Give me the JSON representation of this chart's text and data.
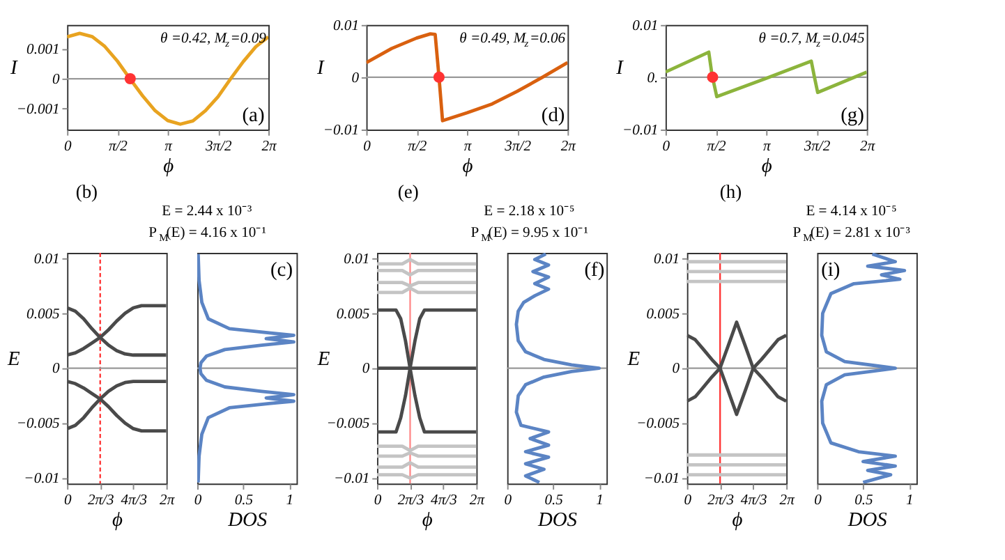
{
  "chart_data": [
    {
      "type": "line",
      "xlabel": "ϕ",
      "ylabel": "I",
      "xlim": [
        0,
        6.2832
      ],
      "ylim": [
        -0.0017,
        0.0018
      ],
      "xticks": [
        0,
        {
          "value": 1.5708,
          "label": "π/2"
        },
        {
          "value": 3.1416,
          "label": "π"
        },
        {
          "value": 4.7124,
          "label": "3π/2"
        },
        {
          "value": 6.2832,
          "label": "2π"
        }
      ],
      "yticks": [
        0.001,
        0,
        {
          "value": -0.001,
          "label": "−0.001"
        }
      ],
      "x": [
        0,
        0.3927,
        0.7854,
        1.1781,
        1.5708,
        1.9635,
        2.3562,
        2.7489,
        3.1416,
        3.5343,
        3.927,
        4.3197,
        4.7124,
        5.1051,
        5.4978,
        5.8905,
        6.2832
      ],
      "series": [
        {
          "color": "#e8a320",
          "values": [
            0.0014,
            0.00152,
            0.00141,
            0.00108,
            0.00059,
            0,
            -0.00057,
            -0.00107,
            -0.0014,
            -0.00152,
            -0.00141,
            -0.00107,
            -0.0006,
            0,
            0.00057,
            0.00107,
            0.0014
          ]
        },
        {
          "type": "scatter",
          "color": "#ff3333",
          "x": [
            1.97
          ],
          "values": [
            0
          ]
        }
      ],
      "ref_lines": [
        {
          "axis": "y",
          "value": 0,
          "color": "#999999"
        }
      ],
      "annotations": [
        "θ =0.42, M$_{z}$=0.09",
        "(a)"
      ]
    },
    {
      "type": "line",
      "xlabel": "ϕ",
      "ylabel": "I",
      "xlim": [
        0,
        6.2832
      ],
      "ylim": [
        -0.01,
        0.01
      ],
      "xticks": [
        0,
        {
          "value": 1.5708,
          "label": "π/2"
        },
        {
          "value": 3.1416,
          "label": "π"
        },
        {
          "value": 4.7124,
          "label": "3π/2"
        },
        {
          "value": 6.2832,
          "label": "2π"
        }
      ],
      "yticks": [
        0.01,
        0,
        {
          "value": -0.01,
          "label": "−0.01"
        }
      ],
      "x": [
        0,
        0.79,
        1.57,
        2.0,
        2.15,
        2.27,
        2.38,
        3.14,
        3.93,
        4.71,
        5.5,
        6.2832
      ],
      "series": [
        {
          "color": "#d9600f",
          "values": [
            0.0028,
            0.0055,
            0.0075,
            0.0083,
            0.0082,
            0,
            -0.0083,
            -0.0068,
            -0.0051,
            -0.0027,
            0,
            0.0028
          ]
        },
        {
          "type": "scatter",
          "color": "#ff3333",
          "x": [
            2.27
          ],
          "values": [
            0
          ]
        }
      ],
      "ref_lines": [
        {
          "axis": "y",
          "value": 0,
          "color": "#999999"
        }
      ],
      "annotations": [
        "θ =0.49, M$_{z}$=0.06",
        "(d)"
      ]
    },
    {
      "type": "line",
      "xlabel": "ϕ",
      "ylabel": "I",
      "xlim": [
        0,
        6.2832
      ],
      "ylim": [
        -0.01,
        0.01
      ],
      "xticks": [
        0,
        {
          "value": 1.5708,
          "label": "π/2"
        },
        {
          "value": 3.1416,
          "label": "π"
        },
        {
          "value": 4.7124,
          "label": "3π/2"
        },
        {
          "value": 6.2832,
          "label": "2π"
        }
      ],
      "yticks": [
        0.01,
        {
          "value": 0,
          "label": "0."
        },
        {
          "value": -0.01,
          "label": "−0.01"
        }
      ],
      "x": [
        0,
        1.35,
        1.45,
        1.6,
        3.14,
        4.55,
        4.65,
        4.75,
        6.2832
      ],
      "series": [
        {
          "color": "#8cb43c",
          "values": [
            0.001,
            0.0048,
            0.0005,
            -0.0037,
            -0.0002,
            0.0031,
            0,
            -0.0029,
            0.001
          ]
        },
        {
          "type": "scatter",
          "color": "#ff3333",
          "x": [
            1.47
          ],
          "values": [
            0
          ]
        }
      ],
      "ref_lines": [
        {
          "axis": "y",
          "value": 0,
          "color": "#999999"
        }
      ],
      "annotations": [
        "θ =0.7, M$_{z}$=0.045",
        "(g)"
      ]
    },
    {
      "type": "other",
      "annotations": [
        "(b)",
        "E = 2.44 x 10⁻³",
        "P$_{M}$(E) = 4.16 x 10⁻¹"
      ]
    },
    {
      "type": "other",
      "annotations": [
        "(e)",
        "E = 2.18 x 10⁻⁵",
        "P$_{M}$(E) = 9.95 x 10⁻¹"
      ]
    },
    {
      "type": "other",
      "annotations": [
        "(h)",
        "E = 4.14 x 10⁻⁵",
        "P$_{M}$(E) = 2.81 x 10⁻³"
      ]
    },
    {
      "type": "line",
      "xlabel": "ϕ",
      "ylabel": "E",
      "xlim": [
        0,
        6.2832
      ],
      "ylim": [
        -0.0105,
        0.0105
      ],
      "xticks": [
        0,
        {
          "value": 2.0944,
          "label": "2π/3"
        },
        {
          "value": 4.1888,
          "label": "4π/3"
        },
        {
          "value": 6.2832,
          "label": "2π"
        }
      ],
      "yticks": [
        0.01,
        0.005,
        0,
        {
          "value": -0.005,
          "label": "−0.005"
        },
        {
          "value": -0.01,
          "label": "−0.01"
        }
      ],
      "x": [
        0,
        0.52,
        1.05,
        1.57,
        2.09,
        2.62,
        3.14,
        3.67,
        4.19,
        4.71,
        5.24,
        5.76,
        6.28
      ],
      "series": [
        {
          "color": "#4a4a4a",
          "values": [
            0.0055,
            0.0052,
            0.0045,
            0.0036,
            0.0028,
            0.0021,
            0.0016,
            0.0013,
            0.0012,
            0.0012,
            0.0012,
            0.0012,
            0.0012
          ]
        },
        {
          "color": "#4a4a4a",
          "values": [
            0.0012,
            0.0014,
            0.0018,
            0.0023,
            0.0028,
            0.0035,
            0.0043,
            0.005,
            0.0055,
            0.0057,
            0.0057,
            0.0057,
            0.0057
          ]
        },
        {
          "color": "#4a4a4a",
          "values": [
            -0.0055,
            -0.0052,
            -0.0045,
            -0.0036,
            -0.0028,
            -0.0021,
            -0.0016,
            -0.0013,
            -0.0012,
            -0.0012,
            -0.0012,
            -0.0012,
            -0.0012
          ]
        },
        {
          "color": "#4a4a4a",
          "values": [
            -0.0012,
            -0.0014,
            -0.0018,
            -0.0023,
            -0.0028,
            -0.0035,
            -0.0043,
            -0.005,
            -0.0055,
            -0.0057,
            -0.0057,
            -0.0057,
            -0.0057
          ]
        }
      ],
      "ref_lines": [
        {
          "axis": "x",
          "value": 2.0944,
          "color": "#ff3333",
          "line_style": "dashed"
        },
        {
          "axis": "y",
          "value": 0,
          "color": "#999999"
        }
      ]
    },
    {
      "type": "line",
      "xlabel": "DOS",
      "xlim": [
        0,
        1.08
      ],
      "ylim": [
        -0.0105,
        0.0105
      ],
      "xticks": [
        0,
        0.5,
        1
      ],
      "tick_labels": "x",
      "series": [
        {
          "color": "#5b84c4",
          "x": [
            0.01,
            0.02,
            0.05,
            0.12,
            0.35,
            0.8,
            1.05,
            0.75,
            1.05,
            0.7,
            0.3,
            0.1,
            0.04,
            0.03,
            0.04,
            0.1,
            0.3,
            0.7,
            1.05,
            0.75,
            1.05,
            0.8,
            0.35,
            0.12,
            0.05,
            0.02,
            0.01
          ],
          "values": [
            0.0104,
            0.008,
            0.006,
            0.0045,
            0.0036,
            0.0032,
            0.003,
            0.0027,
            0.0024,
            0.0021,
            0.0017,
            0.0011,
            0.0005,
            0,
            -0.0005,
            -0.0011,
            -0.0017,
            -0.0021,
            -0.0024,
            -0.0027,
            -0.003,
            -0.0032,
            -0.0036,
            -0.0045,
            -0.006,
            -0.008,
            -0.0104
          ]
        }
      ],
      "ref_lines": [
        {
          "axis": "y",
          "value": 0,
          "color": "#999999"
        }
      ],
      "annotations": [
        "(c)"
      ]
    },
    {
      "type": "line",
      "xlabel": "ϕ",
      "ylabel": "E",
      "xlim": [
        0,
        6.2832
      ],
      "ylim": [
        -0.0105,
        0.0105
      ],
      "xticks": [
        0,
        {
          "value": 2.0944,
          "label": "2π/3"
        },
        {
          "value": 4.1888,
          "label": "4π/3"
        },
        {
          "value": 6.2832,
          "label": "2π"
        }
      ],
      "yticks": [
        0.01,
        0.005,
        0,
        {
          "value": -0.005,
          "label": "−0.005"
        },
        {
          "value": -0.01,
          "label": "−0.01"
        }
      ],
      "x": [
        0,
        1.6,
        2.09,
        2.6,
        6.28
      ],
      "series": [
        {
          "color": "#c4c4c4",
          "values": [
            0.0069,
            0.0069,
            0.0073,
            0.0069,
            0.0069
          ]
        },
        {
          "color": "#c4c4c4",
          "values": [
            0.0078,
            0.0078,
            0.0075,
            0.0078,
            0.0078
          ]
        },
        {
          "color": "#c4c4c4",
          "values": [
            0.0089,
            0.0089,
            0.0085,
            0.0089,
            0.0089
          ]
        },
        {
          "color": "#c4c4c4",
          "values": [
            0.0095,
            0.0095,
            0.0099,
            0.0095,
            0.0095
          ]
        },
        {
          "color": "#c4c4c4",
          "values": [
            -0.0071,
            -0.0071,
            -0.0075,
            -0.0071,
            -0.0071
          ]
        },
        {
          "color": "#c4c4c4",
          "values": [
            -0.008,
            -0.008,
            -0.0077,
            -0.008,
            -0.008
          ]
        },
        {
          "color": "#c4c4c4",
          "values": [
            -0.009,
            -0.009,
            -0.0086,
            -0.009,
            -0.009
          ]
        },
        {
          "color": "#c4c4c4",
          "values": [
            -0.0097,
            -0.0097,
            -0.01,
            -0.0097,
            -0.0097
          ]
        },
        {
          "color": "#4a4a4a",
          "x": [
            0,
            6.28
          ],
          "values": [
            0,
            0
          ]
        },
        {
          "color": "#4a4a4a",
          "x": [
            0,
            1.2,
            1.5,
            1.8,
            2.09,
            2.4,
            2.7,
            3.0,
            6.28
          ],
          "values": [
            0.0053,
            0.0053,
            0.0045,
            0.0025,
            0,
            -0.0025,
            -0.0045,
            -0.0058,
            -0.0058
          ]
        },
        {
          "color": "#4a4a4a",
          "x": [
            0,
            1.2,
            1.5,
            1.8,
            2.09,
            2.4,
            2.7,
            3.0,
            6.28
          ],
          "values": [
            -0.0058,
            -0.0058,
            -0.0045,
            -0.0025,
            0,
            0.0025,
            0.0045,
            0.0053,
            0.0053
          ]
        }
      ],
      "ref_lines": [
        {
          "axis": "x",
          "value": 2.0944,
          "color": "#ff8888"
        }
      ]
    },
    {
      "type": "line",
      "xlabel": "DOS",
      "xlim": [
        0,
        1.08
      ],
      "ylim": [
        -0.0105,
        0.0105
      ],
      "xticks": [
        0,
        0.5,
        1
      ],
      "tick_labels": "x",
      "series": [
        {
          "color": "#5b84c4",
          "x": [
            0.42,
            0.3,
            0.45,
            0.28,
            0.45,
            0.3,
            0.45,
            0.3,
            0.18,
            0.12,
            0.1,
            0.12,
            0.2,
            0.4,
            0.7,
            1.0,
            0.7,
            0.4,
            0.2,
            0.12,
            0.1,
            0.15,
            0.45,
            0.25,
            0.45,
            0.2,
            0.45,
            0.2,
            0.4,
            0.2,
            0.35
          ],
          "values": [
            0.0104,
            0.0099,
            0.0094,
            0.0088,
            0.0083,
            0.0077,
            0.0072,
            0.0066,
            0.006,
            0.0052,
            0.004,
            0.0025,
            0.0015,
            0.0008,
            0.0003,
            0,
            -0.0003,
            -0.0008,
            -0.0015,
            -0.0025,
            -0.004,
            -0.0052,
            -0.0058,
            -0.0064,
            -0.007,
            -0.0076,
            -0.0081,
            -0.0087,
            -0.0092,
            -0.0098,
            -0.0104
          ]
        }
      ],
      "ref_lines": [
        {
          "axis": "y",
          "value": 0,
          "color": "#999999"
        }
      ],
      "annotations": [
        "(f)"
      ]
    },
    {
      "type": "line",
      "xlabel": "ϕ",
      "ylabel": "E",
      "xlim": [
        0,
        6.2832
      ],
      "ylim": [
        -0.0105,
        0.0105
      ],
      "xticks": [
        0,
        {
          "value": 2.0944,
          "label": "2π/3"
        },
        {
          "value": 4.1888,
          "label": "4π/3"
        },
        {
          "value": 6.2832,
          "label": "2π"
        }
      ],
      "yticks": [
        0.01,
        0.005,
        0,
        {
          "value": -0.005,
          "label": "−0.005"
        },
        {
          "value": -0.01,
          "label": "−0.01"
        }
      ],
      "x": [
        0,
        0.52,
        1.05,
        1.57,
        2.09,
        2.62,
        3.14,
        3.67,
        4.19,
        4.71,
        5.24,
        5.76,
        6.28
      ],
      "series": [
        {
          "color": "#c4c4c4",
          "x": [
            0,
            6.28
          ],
          "values": [
            0.0079,
            0.0079
          ]
        },
        {
          "color": "#c4c4c4",
          "x": [
            0,
            6.28
          ],
          "values": [
            0.0088,
            0.0088
          ]
        },
        {
          "color": "#c4c4c4",
          "x": [
            0,
            6.28
          ],
          "values": [
            0.0097,
            0.0097
          ]
        },
        {
          "color": "#c4c4c4",
          "x": [
            0,
            6.28
          ],
          "values": [
            -0.0079,
            -0.0079
          ]
        },
        {
          "color": "#c4c4c4",
          "x": [
            0,
            6.28
          ],
          "values": [
            -0.0088,
            -0.0088
          ]
        },
        {
          "color": "#c4c4c4",
          "x": [
            0,
            6.28
          ],
          "values": [
            -0.0097,
            -0.0097
          ]
        },
        {
          "color": "#4a4a4a",
          "values": [
            0.003,
            0.0026,
            0.0017,
            0.0008,
            0,
            -0.0021,
            -0.0042,
            -0.0021,
            0,
            0.0008,
            0.0017,
            0.0026,
            0.003
          ]
        },
        {
          "color": "#4a4a4a",
          "values": [
            -0.003,
            -0.0026,
            -0.0017,
            -0.0008,
            0,
            0.0021,
            0.0042,
            0.0021,
            0,
            -0.0008,
            -0.0017,
            -0.0026,
            -0.003
          ]
        }
      ],
      "ref_lines": [
        {
          "axis": "x",
          "value": 2.0944,
          "color": "#ff3333"
        },
        {
          "axis": "y",
          "value": 0,
          "color": "#999999"
        }
      ]
    },
    {
      "type": "line",
      "xlabel": "DOS",
      "xlim": [
        0,
        1.08
      ],
      "ylim": [
        -0.0105,
        0.0105
      ],
      "xticks": [
        0,
        0.5,
        1
      ],
      "tick_labels": "x",
      "series": [
        {
          "color": "#5b84c4",
          "x": [
            0.6,
            0.85,
            0.55,
            0.95,
            0.7,
            0.9,
            0.4,
            0.15,
            0.06,
            0.05,
            0.1,
            0.3,
            0.85,
            0.3,
            0.1,
            0.05,
            0.06,
            0.15,
            0.45,
            0.85,
            0.5,
            0.85,
            0.55,
            0.8,
            0.5
          ],
          "values": [
            0.0104,
            0.0097,
            0.0093,
            0.0089,
            0.0085,
            0.0081,
            0.0077,
            0.0068,
            0.005,
            0.003,
            0.0015,
            0.0006,
            0,
            -0.0006,
            -0.0015,
            -0.003,
            -0.005,
            -0.0068,
            -0.0076,
            -0.008,
            -0.0085,
            -0.0089,
            -0.0093,
            -0.0097,
            -0.0104
          ]
        }
      ],
      "ref_lines": [
        {
          "axis": "y",
          "value": 0,
          "color": "#999999"
        }
      ],
      "annotations": [
        "(i)"
      ]
    }
  ]
}
